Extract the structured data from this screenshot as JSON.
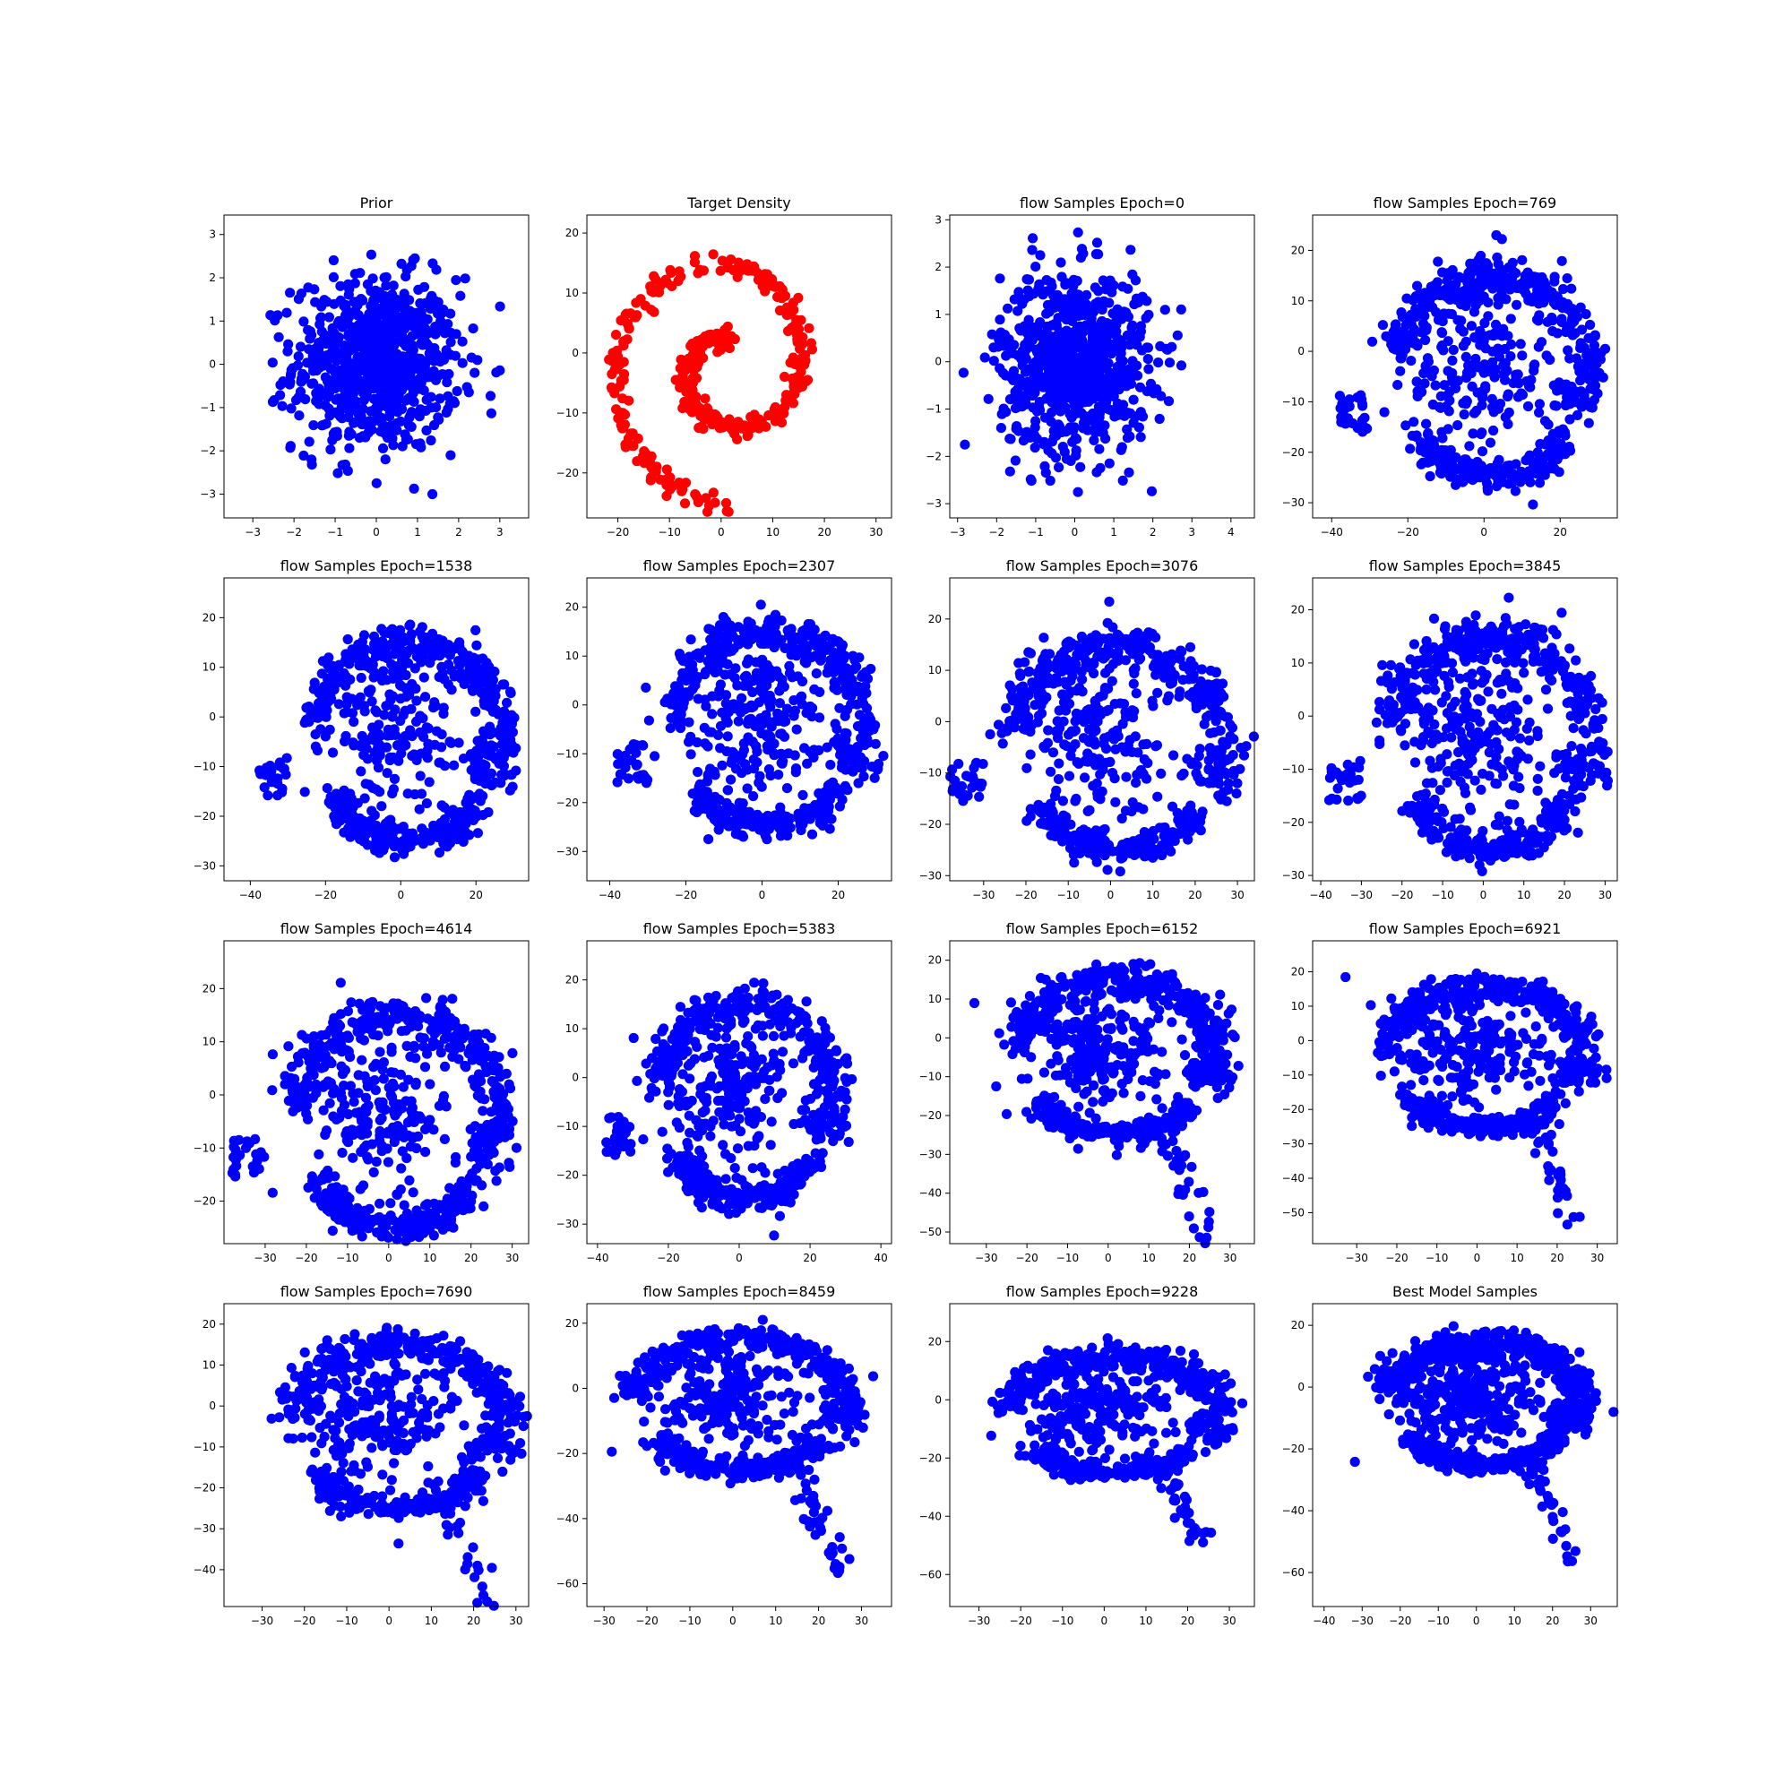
{
  "figure": {
    "title": "",
    "layout": "4x4 grid of scatter subplots"
  },
  "chart_data": [
    {
      "type": "scatter",
      "title": "Prior",
      "color": "#0000ff",
      "xlim": [
        -3.7,
        3.7
      ],
      "ylim": [
        -3.55,
        3.45
      ],
      "xticks": [
        -3,
        -2,
        -1,
        0,
        1,
        2,
        3
      ],
      "yticks": [
        -3,
        -2,
        -1,
        0,
        1,
        2,
        3
      ],
      "shape": "gaussian",
      "n_points": 800,
      "spread": 1.0
    },
    {
      "type": "scatter",
      "title": "Target Density",
      "color": "#ff0000",
      "xlim": [
        -26,
        33
      ],
      "ylim": [
        -27.5,
        23
      ],
      "xticks": [
        -20,
        -10,
        0,
        10,
        20,
        30
      ],
      "yticks": [
        -20,
        -10,
        0,
        10,
        20
      ],
      "shape": "spiral",
      "n_points": 400
    },
    {
      "type": "scatter",
      "title": "flow Samples Epoch=0",
      "color": "#0000ff",
      "xlim": [
        -3.2,
        4.6
      ],
      "ylim": [
        -3.3,
        3.1
      ],
      "xticks": [
        -3,
        -2,
        -1,
        0,
        1,
        2,
        3,
        4
      ],
      "yticks": [
        -3,
        -2,
        -1,
        0,
        1,
        2,
        3
      ],
      "shape": "gaussian",
      "n_points": 800,
      "spread": 0.95
    },
    {
      "type": "scatter",
      "title": "flow Samples Epoch=769",
      "color": "#0000ff",
      "xlim": [
        -45,
        35
      ],
      "ylim": [
        -33,
        27
      ],
      "xticks": [
        -40,
        -20,
        0,
        20
      ],
      "yticks": [
        -30,
        -20,
        -10,
        0,
        10,
        20
      ],
      "shape": "flow",
      "n_points": 800
    },
    {
      "type": "scatter",
      "title": "flow Samples Epoch=1538",
      "color": "#0000ff",
      "xlim": [
        -47,
        34
      ],
      "ylim": [
        -33,
        28
      ],
      "xticks": [
        -40,
        -20,
        0,
        20
      ],
      "yticks": [
        -30,
        -20,
        -10,
        0,
        10,
        20
      ],
      "shape": "flow",
      "n_points": 800
    },
    {
      "type": "scatter",
      "title": "flow Samples Epoch=2307",
      "color": "#0000ff",
      "xlim": [
        -46,
        34
      ],
      "ylim": [
        -36,
        26
      ],
      "xticks": [
        -40,
        -20,
        0,
        20
      ],
      "yticks": [
        -30,
        -20,
        -10,
        0,
        10,
        20
      ],
      "shape": "flow",
      "n_points": 800
    },
    {
      "type": "scatter",
      "title": "flow Samples Epoch=3076",
      "color": "#0000ff",
      "xlim": [
        -38,
        34
      ],
      "ylim": [
        -31,
        28
      ],
      "xticks": [
        -30,
        -20,
        -10,
        0,
        10,
        20,
        30
      ],
      "yticks": [
        -30,
        -20,
        -10,
        0,
        10,
        20
      ],
      "shape": "flow",
      "n_points": 800
    },
    {
      "type": "scatter",
      "title": "flow Samples Epoch=3845",
      "color": "#0000ff",
      "xlim": [
        -42,
        33
      ],
      "ylim": [
        -31,
        26
      ],
      "xticks": [
        -40,
        -30,
        -20,
        -10,
        0,
        10,
        20,
        30
      ],
      "yticks": [
        -30,
        -20,
        -10,
        0,
        10,
        20
      ],
      "shape": "flow",
      "n_points": 800
    },
    {
      "type": "scatter",
      "title": "flow Samples Epoch=4614",
      "color": "#0000ff",
      "xlim": [
        -40,
        34
      ],
      "ylim": [
        -28,
        29
      ],
      "xticks": [
        -30,
        -20,
        -10,
        0,
        10,
        20,
        30
      ],
      "yticks": [
        -20,
        -10,
        0,
        10,
        20
      ],
      "shape": "flow",
      "n_points": 800
    },
    {
      "type": "scatter",
      "title": "flow Samples Epoch=5383",
      "color": "#0000ff",
      "xlim": [
        -43,
        43
      ],
      "ylim": [
        -34,
        28
      ],
      "xticks": [
        -40,
        -20,
        0,
        20,
        40
      ],
      "yticks": [
        -30,
        -20,
        -10,
        0,
        10,
        20
      ],
      "shape": "flow",
      "n_points": 800
    },
    {
      "type": "scatter",
      "title": "flow Samples Epoch=6152",
      "color": "#0000ff",
      "xlim": [
        -39,
        36
      ],
      "ylim": [
        -53,
        25
      ],
      "xticks": [
        -30,
        -20,
        -10,
        0,
        10,
        20,
        30
      ],
      "yticks": [
        -50,
        -40,
        -30,
        -20,
        -10,
        0,
        10,
        20
      ],
      "shape": "flow_tail",
      "n_points": 800
    },
    {
      "type": "scatter",
      "title": "flow Samples Epoch=6921",
      "color": "#0000ff",
      "xlim": [
        -41,
        35
      ],
      "ylim": [
        -59,
        29
      ],
      "xticks": [
        -30,
        -20,
        -10,
        0,
        10,
        20,
        30
      ],
      "yticks": [
        -50,
        -40,
        -30,
        -20,
        -10,
        0,
        10,
        20
      ],
      "shape": "flow_tail",
      "n_points": 800
    },
    {
      "type": "scatter",
      "title": "flow Samples Epoch=7690",
      "color": "#0000ff",
      "xlim": [
        -39,
        33
      ],
      "ylim": [
        -49,
        25
      ],
      "xticks": [
        -30,
        -20,
        -10,
        0,
        10,
        20,
        30
      ],
      "yticks": [
        -40,
        -30,
        -20,
        -10,
        0,
        10,
        20
      ],
      "shape": "flow_tail",
      "n_points": 800
    },
    {
      "type": "scatter",
      "title": "flow Samples Epoch=8459",
      "color": "#0000ff",
      "xlim": [
        -34,
        37
      ],
      "ylim": [
        -67,
        26
      ],
      "xticks": [
        -30,
        -20,
        -10,
        0,
        10,
        20,
        30
      ],
      "yticks": [
        -60,
        -40,
        -20,
        0,
        20
      ],
      "shape": "flow_tail",
      "n_points": 800
    },
    {
      "type": "scatter",
      "title": "flow Samples Epoch=9228",
      "color": "#0000ff",
      "xlim": [
        -37,
        36
      ],
      "ylim": [
        -71,
        33
      ],
      "xticks": [
        -30,
        -20,
        -10,
        0,
        10,
        20,
        30
      ],
      "yticks": [
        -60,
        -40,
        -20,
        0,
        20
      ],
      "shape": "flow_tail",
      "n_points": 800
    },
    {
      "type": "scatter",
      "title": "Best Model Samples",
      "color": "#0000ff",
      "xlim": [
        -43,
        37
      ],
      "ylim": [
        -71,
        27
      ],
      "xticks": [
        -40,
        -30,
        -20,
        -10,
        0,
        10,
        20,
        30
      ],
      "yticks": [
        -60,
        -40,
        -20,
        0,
        20
      ],
      "shape": "flow_tail",
      "n_points": 1100
    }
  ]
}
